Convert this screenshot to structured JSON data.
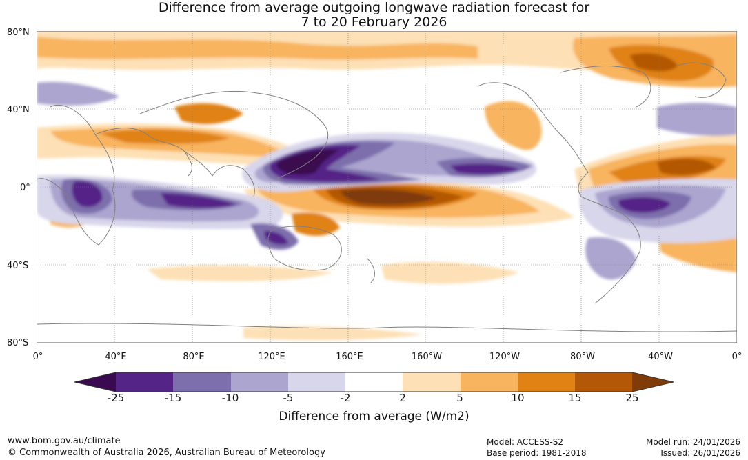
{
  "title": {
    "line1": "Difference from average outgoing longwave radiation forecast for",
    "line2": "7 to 20 February 2026"
  },
  "map": {
    "lat_labels": [
      "80°N",
      "40°N",
      "0°",
      "40°S",
      "80°S"
    ],
    "lon_labels": [
      "0°",
      "40°E",
      "80°E",
      "120°E",
      "160°E",
      "160°W",
      "120°W",
      "80°W",
      "40°W",
      "0°"
    ],
    "blobs": [
      {
        "region": "maritime-continent-strong-negative",
        "lon": 145,
        "lat": 12,
        "bin": -25
      },
      {
        "region": "western-pacific-negative",
        "lon": 150,
        "lat": 10,
        "bin": -15
      },
      {
        "region": "central-pacific-strong-positive",
        "lon": 175,
        "lat": -3,
        "bin": 25
      },
      {
        "region": "central-pacific-positive",
        "lon": 178,
        "lat": -3,
        "bin": 15
      },
      {
        "region": "south-america-negative",
        "lon": -55,
        "lat": -8,
        "bin": -10
      },
      {
        "region": "africa-negative",
        "lon": 22,
        "lat": 0,
        "bin": -10
      },
      {
        "region": "greenland-positive",
        "lon": -60,
        "lat": 68,
        "bin": 10
      },
      {
        "region": "atlantic-positive",
        "lon": -45,
        "lat": 18,
        "bin": 10
      }
    ]
  },
  "colorbar": {
    "colors": [
      "#3a0a50",
      "#542487",
      "#7d6eac",
      "#aba5cf",
      "#d8d6ea",
      "#ffffff",
      "#fde0b5",
      "#f8b45e",
      "#e08214",
      "#b35806",
      "#7f3b08"
    ],
    "ticks": [
      "-25",
      "-15",
      "-10",
      "-5",
      "-2",
      "2",
      "5",
      "10",
      "15",
      "25"
    ],
    "label": "Difference from average (W/m2)"
  },
  "footer": {
    "website": "www.bom.gov.au/climate",
    "copyright": "© Commonwealth of Australia 2026, Australian Bureau of Meteorology",
    "model": "Model: ACCESS-S2",
    "base_period": "Base period: 1981-2018",
    "model_run": "Model run: 24/01/2026",
    "issued": "Issued: 26/01/2026"
  }
}
